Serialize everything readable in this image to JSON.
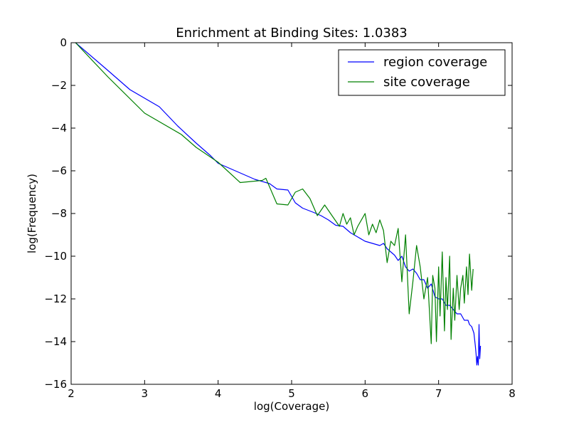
{
  "chart_data": {
    "type": "line",
    "title": "Enrichment at Binding Sites: 1.0383",
    "xlabel": "log(Coverage)",
    "ylabel": "log(Frequency)",
    "xlim": [
      2,
      8
    ],
    "ylim": [
      -16,
      0
    ],
    "x_ticks": [
      "2",
      "3",
      "4",
      "5",
      "6",
      "7",
      "8"
    ],
    "y_ticks": [
      "0",
      "−2",
      "−4",
      "−6",
      "−8",
      "−10",
      "−12",
      "−14",
      "−16"
    ],
    "x_tick_values": [
      2,
      3,
      4,
      5,
      6,
      7,
      8
    ],
    "y_tick_values": [
      0,
      -2,
      -4,
      -6,
      -8,
      -10,
      -12,
      -14,
      -16
    ],
    "grid": false,
    "legend_position": "top-right",
    "series": [
      {
        "name": "region coverage",
        "color": "#0000ff",
        "x": [
          2.06,
          2.5,
          2.8,
          3.2,
          3.45,
          3.7,
          3.9,
          4.0,
          4.3,
          4.5,
          4.7,
          4.8,
          4.95,
          5.0,
          5.05,
          5.15,
          5.3,
          5.4,
          5.5,
          5.6,
          5.7,
          5.8,
          5.9,
          6.0,
          6.1,
          6.2,
          6.25,
          6.3,
          6.35,
          6.4,
          6.45,
          6.5,
          6.55,
          6.6,
          6.65,
          6.7,
          6.75,
          6.8,
          6.85,
          6.9,
          6.95,
          7.0,
          7.05,
          7.1,
          7.15,
          7.2,
          7.25,
          7.3,
          7.35,
          7.4,
          7.42,
          7.45,
          7.48,
          7.5,
          7.51,
          7.52,
          7.53,
          7.54,
          7.55,
          7.56,
          7.57
        ],
        "y": [
          0.0,
          -1.3,
          -2.2,
          -3.0,
          -3.9,
          -4.7,
          -5.3,
          -5.65,
          -6.1,
          -6.4,
          -6.6,
          -6.85,
          -6.9,
          -7.2,
          -7.5,
          -7.75,
          -7.95,
          -8.1,
          -8.3,
          -8.55,
          -8.6,
          -8.9,
          -9.1,
          -9.3,
          -9.4,
          -9.5,
          -9.4,
          -9.65,
          -9.8,
          -9.95,
          -10.2,
          -10.0,
          -10.5,
          -10.7,
          -10.6,
          -10.8,
          -11.1,
          -11.1,
          -11.5,
          -11.3,
          -11.9,
          -12.0,
          -12.0,
          -12.3,
          -12.3,
          -12.5,
          -12.7,
          -12.7,
          -13.0,
          -13.0,
          -13.2,
          -13.3,
          -13.6,
          -14.2,
          -14.6,
          -15.1,
          -14.7,
          -15.1,
          -13.2,
          -14.8,
          -14.2
        ]
      },
      {
        "name": "site coverage",
        "color": "#008000",
        "x": [
          2.06,
          2.5,
          3.0,
          3.5,
          3.7,
          4.0,
          4.3,
          4.6,
          4.65,
          4.8,
          4.95,
          5.05,
          5.15,
          5.25,
          5.35,
          5.45,
          5.55,
          5.65,
          5.7,
          5.75,
          5.8,
          5.85,
          5.9,
          6.0,
          6.05,
          6.1,
          6.15,
          6.2,
          6.25,
          6.3,
          6.35,
          6.4,
          6.45,
          6.5,
          6.55,
          6.6,
          6.65,
          6.7,
          6.75,
          6.8,
          6.85,
          6.9,
          6.92,
          6.95,
          6.97,
          7.0,
          7.02,
          7.05,
          7.08,
          7.1,
          7.12,
          7.15,
          7.17,
          7.2,
          7.22,
          7.25,
          7.28,
          7.3,
          7.33,
          7.35,
          7.38,
          7.4,
          7.42,
          7.45,
          7.47
        ],
        "y": [
          0.0,
          -1.6,
          -3.3,
          -4.3,
          -4.9,
          -5.6,
          -6.55,
          -6.45,
          -6.35,
          -7.55,
          -7.6,
          -7.0,
          -6.85,
          -7.3,
          -8.1,
          -7.6,
          -8.1,
          -8.6,
          -8.0,
          -8.5,
          -8.2,
          -9.0,
          -8.6,
          -8.0,
          -9.0,
          -8.5,
          -8.9,
          -8.3,
          -8.8,
          -10.3,
          -9.3,
          -9.5,
          -8.7,
          -11.2,
          -9.0,
          -12.7,
          -11.2,
          -9.5,
          -10.5,
          -12.0,
          -11.0,
          -14.1,
          -10.9,
          -11.5,
          -14.0,
          -10.5,
          -12.8,
          -9.8,
          -13.5,
          -11.0,
          -12.5,
          -10.0,
          -13.9,
          -11.5,
          -13.0,
          -10.9,
          -12.5,
          -11.5,
          -10.9,
          -12.2,
          -10.5,
          -11.8,
          -9.9,
          -11.6,
          -10.6
        ]
      }
    ]
  }
}
